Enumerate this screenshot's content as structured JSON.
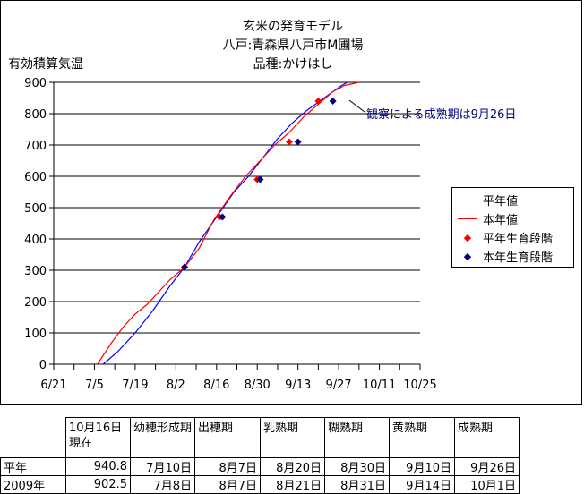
{
  "titles": [
    "玄米の発育モデル",
    "八戸:青森県八戸市M圃場",
    "品種:かけはし"
  ],
  "ylabel": "有効積算気温",
  "annotation": "観察による成熟期は9月26日",
  "colors": {
    "normal": "#0000ff",
    "current": "#ff0000",
    "normal_stage": "#ff0000",
    "current_stage": "#000080"
  },
  "chart_data": {
    "type": "line",
    "title": "玄米の発育モデル",
    "subtitle": [
      "八戸:青森県八戸市M圃場",
      "品種:かけはし"
    ],
    "ylabel": "有効積算気温",
    "xlabel": "",
    "x_ticks": [
      "6/21",
      "7/5",
      "7/19",
      "8/2",
      "8/16",
      "8/30",
      "9/13",
      "9/27",
      "10/11",
      "10/25"
    ],
    "x_unit": "days since 6/21",
    "xlim": [
      0,
      126
    ],
    "ylim": [
      0,
      900
    ],
    "y_ticks": [
      0,
      100,
      200,
      300,
      400,
      500,
      600,
      700,
      800,
      900
    ],
    "grid": "horizontal",
    "legend_position": "right",
    "series": [
      {
        "name": "平年値",
        "kind": "line",
        "color": "#0000ff",
        "points": [
          [
            17,
            0
          ],
          [
            22,
            40
          ],
          [
            28,
            100
          ],
          [
            34,
            170
          ],
          [
            40,
            250
          ],
          [
            45,
            310
          ],
          [
            50,
            390
          ],
          [
            56,
            470
          ],
          [
            62,
            550
          ],
          [
            67,
            600
          ],
          [
            72,
            660
          ],
          [
            77,
            720
          ],
          [
            82,
            770
          ],
          [
            87,
            810
          ],
          [
            93,
            850
          ],
          [
            99,
            890
          ],
          [
            101,
            900
          ]
        ]
      },
      {
        "name": "本年値",
        "kind": "line",
        "color": "#ff0000",
        "points": [
          [
            15,
            0
          ],
          [
            20,
            70
          ],
          [
            24,
            120
          ],
          [
            28,
            160
          ],
          [
            32,
            190
          ],
          [
            36,
            230
          ],
          [
            40,
            270
          ],
          [
            45,
            310
          ],
          [
            50,
            370
          ],
          [
            55,
            460
          ],
          [
            61,
            540
          ],
          [
            66,
            600
          ],
          [
            71,
            650
          ],
          [
            76,
            700
          ],
          [
            81,
            740
          ],
          [
            86,
            790
          ],
          [
            91,
            830
          ],
          [
            96,
            870
          ],
          [
            100,
            890
          ],
          [
            105,
            900
          ]
        ]
      },
      {
        "name": "平年生育段階",
        "kind": "marker",
        "color": "#ff0000",
        "points": [
          [
            45,
            310
          ],
          [
            57,
            470
          ],
          [
            70,
            590
          ],
          [
            81,
            710
          ],
          [
            91,
            840
          ]
        ]
      },
      {
        "name": "本年生育段階",
        "kind": "marker",
        "color": "#000080",
        "points": [
          [
            45,
            310
          ],
          [
            58,
            470
          ],
          [
            71,
            590
          ],
          [
            84,
            710
          ],
          [
            96,
            840
          ]
        ]
      }
    ]
  },
  "table": {
    "headers": [
      "",
      "10月16日現在",
      "幼穂形成期",
      "出穂期",
      "乳熟期",
      "糊熟期",
      "黄熟期",
      "成熟期"
    ],
    "rows": [
      [
        "平年",
        "940.8",
        "7月10日",
        "8月7日",
        "8月20日",
        "8月30日",
        "9月10日",
        "9月26日"
      ],
      [
        "2009年",
        "902.5",
        "7月8日",
        "8月7日",
        "8月21日",
        "8月31日",
        "9月14日",
        "10月1日"
      ]
    ]
  }
}
